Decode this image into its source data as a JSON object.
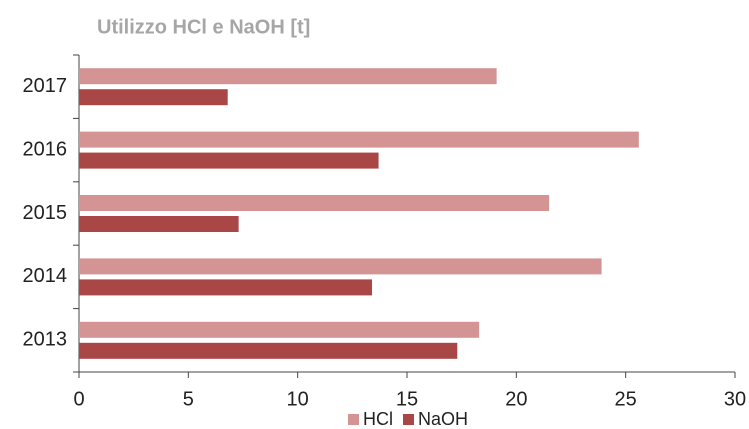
{
  "chart_data": {
    "type": "bar",
    "orientation": "horizontal",
    "title": "Utilizzo HCl e NaOH [t]",
    "categories": [
      "2013",
      "2014",
      "2015",
      "2016",
      "2017"
    ],
    "series": [
      {
        "name": "HCl",
        "color": "#d49494",
        "values": [
          18.3,
          23.9,
          21.5,
          25.6,
          19.1
        ]
      },
      {
        "name": "NaOH",
        "color": "#a94646",
        "values": [
          17.3,
          13.4,
          7.3,
          13.7,
          6.8
        ]
      }
    ],
    "xlim": [
      0,
      30
    ],
    "xticks": [
      0,
      5,
      10,
      15,
      20,
      25,
      30
    ],
    "legend": "bottom"
  }
}
